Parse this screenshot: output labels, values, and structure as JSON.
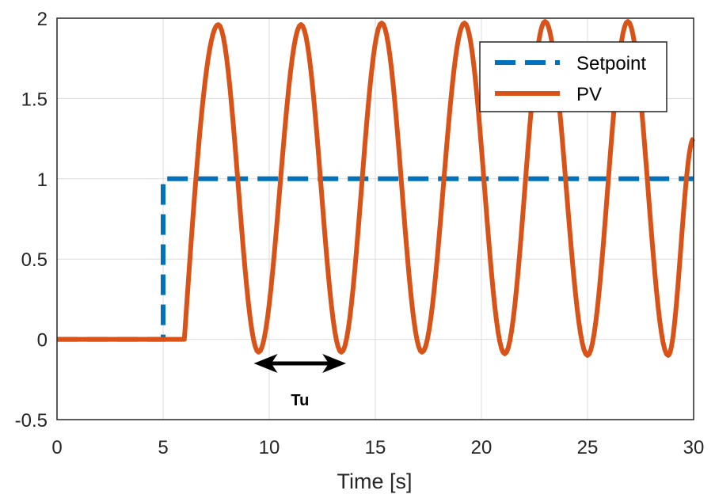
{
  "chart_data": {
    "type": "line",
    "title": "",
    "xlabel": "Time [s]",
    "ylabel": "",
    "xlim": [
      0,
      30
    ],
    "ylim": [
      -0.5,
      2
    ],
    "grid": true,
    "legend_placement": "top-right",
    "x_ticks": [
      0,
      5,
      10,
      15,
      20,
      25,
      30
    ],
    "x_tick_labels": [
      "0",
      "5",
      "10",
      "15",
      "20",
      "25",
      "30"
    ],
    "y_ticks": [
      -0.5,
      0,
      0.5,
      1,
      1.5,
      2
    ],
    "y_tick_labels": [
      "-0.5",
      "0",
      "0.5",
      "1",
      "1.5",
      "2"
    ],
    "series": [
      {
        "name": "Setpoint",
        "color": "#0072BD",
        "style": "dashed",
        "x": [
          0,
          5,
          5,
          30
        ],
        "y": [
          0,
          0,
          1,
          1
        ]
      },
      {
        "name": "PV",
        "color": "#D95319",
        "style": "solid",
        "x": [
          0,
          6,
          7.6,
          9.5,
          11.5,
          13.4,
          15.3,
          17.2,
          19.2,
          21.1,
          23.0,
          25.0,
          26.9,
          28.8,
          30
        ],
        "y": [
          0,
          0,
          1.96,
          -0.08,
          1.96,
          -0.08,
          1.97,
          -0.08,
          1.97,
          -0.09,
          1.98,
          -0.1,
          1.98,
          -0.1,
          1.25
        ]
      }
    ],
    "annotations": [
      {
        "text": "Tu",
        "type": "double-arrow",
        "x_start": 9.5,
        "x_end": 13.4,
        "y": -0.15
      }
    ]
  }
}
